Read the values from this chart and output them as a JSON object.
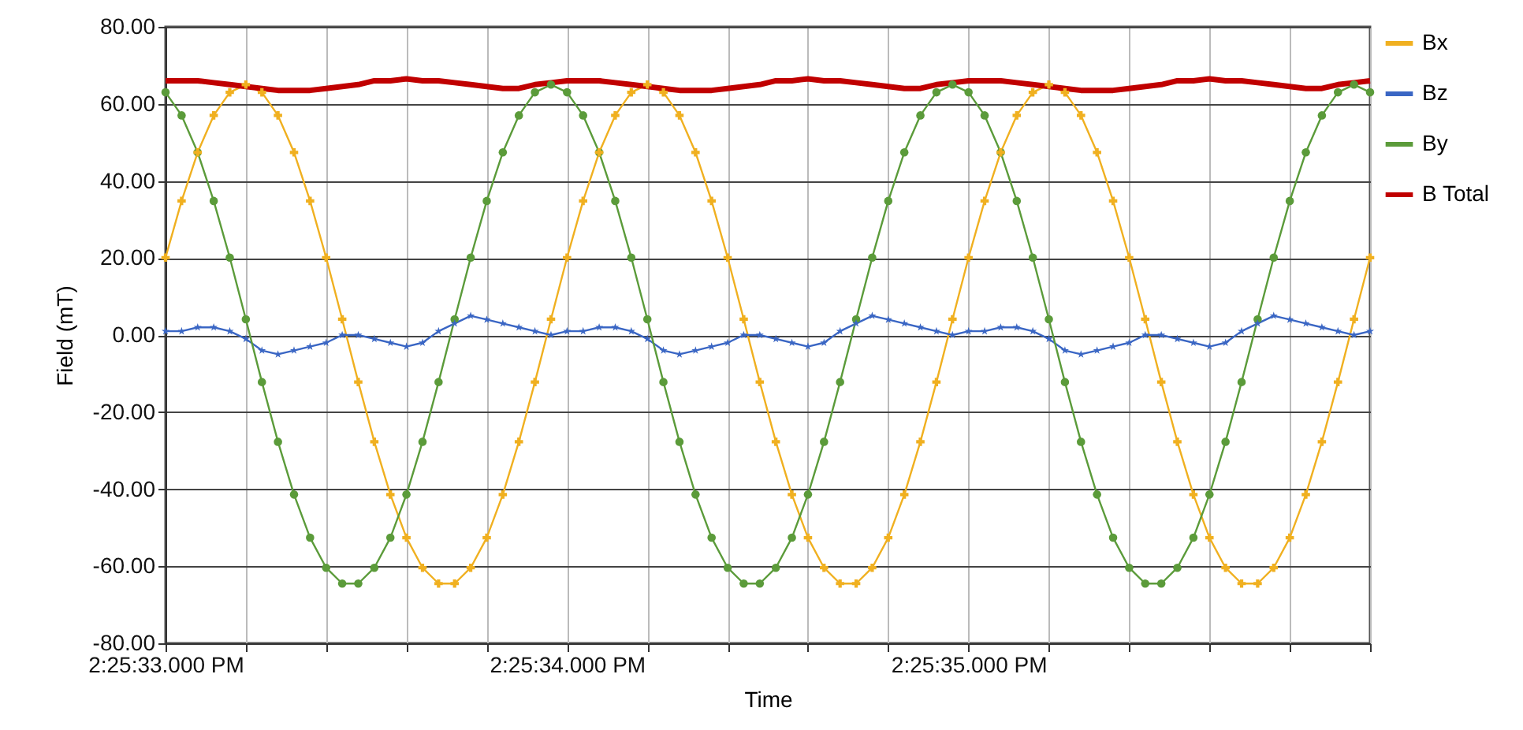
{
  "chart_data": {
    "type": "line",
    "xlabel": "Time",
    "ylabel": "Field (mT)",
    "categories": [
      "2:25:33.000 PM",
      null,
      null,
      null,
      null,
      null,
      null,
      null,
      null,
      null,
      null,
      null,
      null,
      null,
      null,
      null,
      null,
      null,
      null,
      null,
      null,
      null,
      null,
      null,
      null,
      "2:25:34.000 PM",
      null,
      null,
      null,
      null,
      null,
      null,
      null,
      null,
      null,
      null,
      null,
      null,
      null,
      null,
      null,
      null,
      null,
      null,
      null,
      null,
      null,
      null,
      null,
      null,
      "2:25:35.000 PM",
      null,
      null,
      null,
      null,
      null,
      null,
      null,
      null,
      null,
      null,
      null,
      null,
      null,
      null,
      null,
      null,
      null,
      null,
      null,
      null,
      null,
      null,
      null,
      null,
      null
    ],
    "series": [
      {
        "name": "Bx",
        "color": "#f0b020",
        "marker": "cross",
        "values": [
          20.1,
          34.8,
          47.4,
          57.0,
          63.0,
          65,
          63.0,
          57.0,
          47.4,
          34.8,
          20.1,
          4.1,
          -12.2,
          -27.7,
          -41.4,
          -52.6,
          -60.4,
          -64.5,
          -64.5,
          -60.4,
          -52.6,
          -41.4,
          -27.7,
          -12.2,
          4.1,
          20.1,
          34.8,
          47.4,
          57.0,
          63.0,
          65,
          63.0,
          57.0,
          47.4,
          34.8,
          20.1,
          4.1,
          -12.2,
          -27.7,
          -41.4,
          -52.6,
          -60.4,
          -64.5,
          -64.5,
          -60.4,
          -52.6,
          -41.4,
          -27.7,
          -12.2,
          4.1,
          20.1,
          34.8,
          47.4,
          57.0,
          63.0,
          65,
          63.0,
          57.0,
          47.4,
          34.8,
          20.1,
          4.1,
          -12.2,
          -27.7,
          -41.4,
          -52.6,
          -60.4,
          -64.5,
          -64.5,
          -60.4,
          -52.6,
          -41.4,
          -27.7,
          -12.2,
          4.1,
          20.1
        ]
      },
      {
        "name": "Bz",
        "color": "#3a66c4",
        "marker": "star",
        "values": [
          1,
          1,
          2,
          2,
          1,
          -1,
          -4,
          -5,
          -4,
          -3,
          -2,
          0,
          0,
          -1,
          -2,
          -3,
          -2,
          1,
          3,
          5,
          4,
          3,
          2,
          1,
          0,
          1,
          1,
          2,
          2,
          1,
          -1,
          -4,
          -5,
          -4,
          -3,
          -2,
          0,
          0,
          -1,
          -2,
          -3,
          -2,
          1,
          3,
          5,
          4,
          3,
          2,
          1,
          0,
          1,
          1,
          2,
          2,
          1,
          -1,
          -4,
          -5,
          -4,
          -3,
          -2,
          0,
          0,
          -1,
          -2,
          -3,
          -2,
          1,
          3,
          5,
          4,
          3,
          2,
          1,
          0,
          1
        ]
      },
      {
        "name": "By",
        "color": "#5b9b3a",
        "marker": "circle",
        "values": [
          63.0,
          57.0,
          47.4,
          34.8,
          20.1,
          4.1,
          -12.2,
          -27.7,
          -41.4,
          -52.6,
          -60.4,
          -64.5,
          -64.5,
          -60.4,
          -52.6,
          -41.4,
          -27.7,
          -12.2,
          4.1,
          20.1,
          34.8,
          47.4,
          57.0,
          63.0,
          65,
          63.0,
          57.0,
          47.4,
          34.8,
          20.1,
          4.1,
          -12.2,
          -27.7,
          -41.4,
          -52.6,
          -60.4,
          -64.5,
          -64.5,
          -60.4,
          -52.6,
          -41.4,
          -27.7,
          -12.2,
          4.1,
          20.1,
          34.8,
          47.4,
          57.0,
          63.0,
          65,
          63.0,
          57.0,
          47.4,
          34.8,
          20.1,
          4.1,
          -12.2,
          -27.7,
          -41.4,
          -52.6,
          -60.4,
          -64.5,
          -64.5,
          -60.4,
          -52.6,
          -41.4,
          -27.7,
          -12.2,
          4.1,
          20.1,
          34.8,
          47.4,
          57.0,
          63.0,
          65,
          63.0
        ]
      },
      {
        "name": "B Total",
        "color": "#c00000",
        "marker": "none",
        "values": [
          66,
          66,
          66,
          65.5,
          65,
          64.5,
          64,
          63.5,
          63.5,
          63.5,
          64,
          64.5,
          65,
          66,
          66,
          66.5,
          66,
          66,
          65.5,
          65,
          64.5,
          64,
          64,
          65,
          65.5,
          66,
          66,
          66,
          65.5,
          65,
          64.5,
          64,
          63.5,
          63.5,
          63.5,
          64,
          64.5,
          65,
          66,
          66,
          66.5,
          66,
          66,
          65.5,
          65,
          64.5,
          64,
          64,
          65,
          65.5,
          66,
          66,
          66,
          65.5,
          65,
          64.5,
          64,
          63.5,
          63.5,
          63.5,
          64,
          64.5,
          65,
          66,
          66,
          66.5,
          66,
          66,
          65.5,
          65,
          64.5,
          64,
          64,
          65,
          65.5,
          66
        ]
      }
    ],
    "ylim": [
      -80,
      80
    ],
    "yticks": [
      {
        "value": -80,
        "label": "-80.00"
      },
      {
        "value": -60,
        "label": "-60.00"
      },
      {
        "value": -40,
        "label": "-40.00"
      },
      {
        "value": -20,
        "label": "-20.00"
      },
      {
        "value": 0,
        "label": "0.00"
      },
      {
        "value": 20,
        "label": "20.00"
      },
      {
        "value": 40,
        "label": "40.00"
      },
      {
        "value": 60,
        "label": "60.00"
      },
      {
        "value": 80,
        "label": "80.00"
      }
    ],
    "grid": true,
    "legend": "top right",
    "line_style": "solid"
  }
}
